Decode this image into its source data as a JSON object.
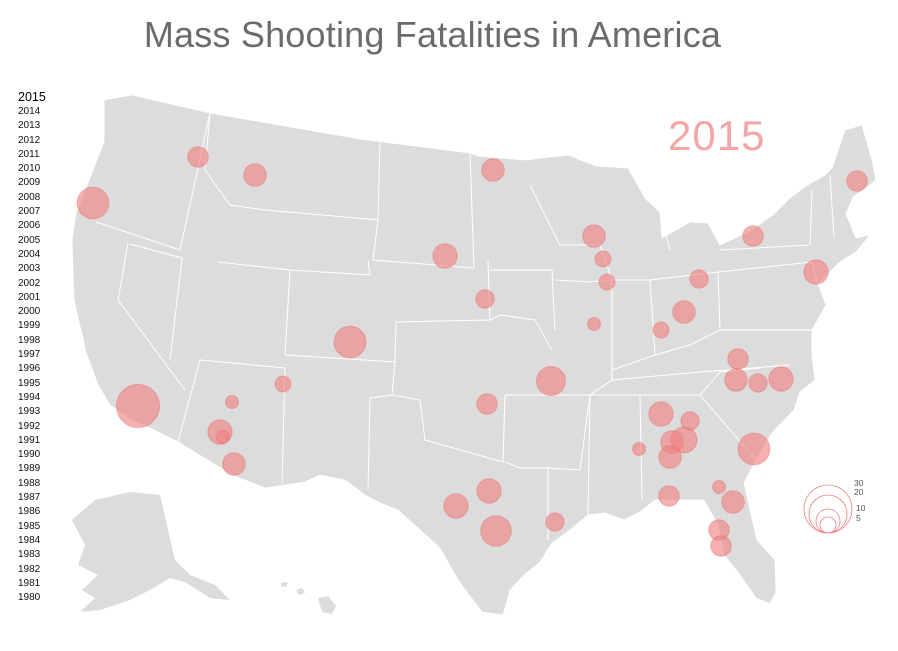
{
  "title": "Mass Shooting Fatalities in America",
  "selected_year": "2015",
  "years": [
    "2015",
    "2014",
    "2013",
    "2012",
    "2011",
    "2010",
    "2009",
    "2008",
    "2007",
    "2006",
    "2005",
    "2004",
    "2003",
    "2002",
    "2001",
    "2000",
    "1999",
    "1998",
    "1997",
    "1996",
    "1995",
    "1994",
    "1993",
    "1992",
    "1991",
    "1990",
    "1989",
    "1988",
    "1987",
    "1986",
    "1985",
    "1984",
    "1983",
    "1982",
    "1981",
    "1980"
  ],
  "legend": {
    "values": [
      "30",
      "20",
      "10",
      "5"
    ]
  },
  "colors": {
    "land": "#dcdcdc",
    "borders": "#ffffff",
    "bubble": "#f08080",
    "bubble_stroke": "#e35b5b",
    "year_highlight": "#f4a6a6",
    "title": "#6b6b6b"
  },
  "map": {
    "markers": [
      {
        "location": "Seattle region WA",
        "fatalities": 5
      },
      {
        "location": "Western Oregon",
        "fatalities": 12
      },
      {
        "location": "Western Montana",
        "fatalities": 6
      },
      {
        "location": "Northern Minnesota",
        "fatalities": 6
      },
      {
        "location": "Central Nebraska",
        "fatalities": 7
      },
      {
        "location": "Omaha NE",
        "fatalities": 4
      },
      {
        "location": "Denver CO",
        "fatalities": 12
      },
      {
        "location": "Southern California",
        "fatalities": 22
      },
      {
        "location": "Northern Arizona",
        "fatalities": 2
      },
      {
        "location": "Central Arizona",
        "fatalities": 7
      },
      {
        "location": "Phoenix AZ",
        "fatalities": 2
      },
      {
        "location": "Tucson AZ",
        "fatalities": 6
      },
      {
        "location": "Northern New Mexico",
        "fatalities": 3
      },
      {
        "location": "Oklahoma",
        "fatalities": 5
      },
      {
        "location": "Northeast Texas",
        "fatalities": 7
      },
      {
        "location": "Central Texas",
        "fatalities": 7
      },
      {
        "location": "Houston TX",
        "fatalities": 11
      },
      {
        "location": "Lafayette LA",
        "fatalities": 4
      },
      {
        "location": "Arkansas",
        "fatalities": 10
      },
      {
        "location": "Wisconsin",
        "fatalities": 6
      },
      {
        "location": "Madison WI",
        "fatalities": 3
      },
      {
        "location": "Chicago IL",
        "fatalities": 3
      },
      {
        "location": "Central Illinois",
        "fatalities": 2
      },
      {
        "location": "Detroit MI",
        "fatalities": 4
      },
      {
        "location": "Ohio",
        "fatalities": 6
      },
      {
        "location": "Southern Ohio",
        "fatalities": 3
      },
      {
        "location": "Tennessee",
        "fatalities": 7
      },
      {
        "location": "Chattanooga TN",
        "fatalities": 6
      },
      {
        "location": "Northern Alabama",
        "fatalities": 2
      },
      {
        "location": "Atlanta GA",
        "fatalities": 8
      },
      {
        "location": "North Georgia",
        "fatalities": 6
      },
      {
        "location": "South Carolina",
        "fatalities": 4
      },
      {
        "location": "Charleston SC",
        "fatalities": 12
      },
      {
        "location": "Virginia",
        "fatalities": 5
      },
      {
        "location": "North Carolina",
        "fatalities": 6
      },
      {
        "location": "NC Piedmont",
        "fatalities": 4
      },
      {
        "location": "Eastern NC",
        "fatalities": 7
      },
      {
        "location": "Western NY",
        "fatalities": 5
      },
      {
        "location": "New York NJ",
        "fatalities": 7
      },
      {
        "location": "Maine",
        "fatalities": 5
      },
      {
        "location": "Southern Georgia",
        "fatalities": 5
      },
      {
        "location": "Jacksonville FL",
        "fatalities": 6
      },
      {
        "location": "Central Florida",
        "fatalities": 5
      },
      {
        "location": "Tampa FL",
        "fatalities": 5
      },
      {
        "location": "Savannah GA",
        "fatalities": 2
      }
    ]
  }
}
